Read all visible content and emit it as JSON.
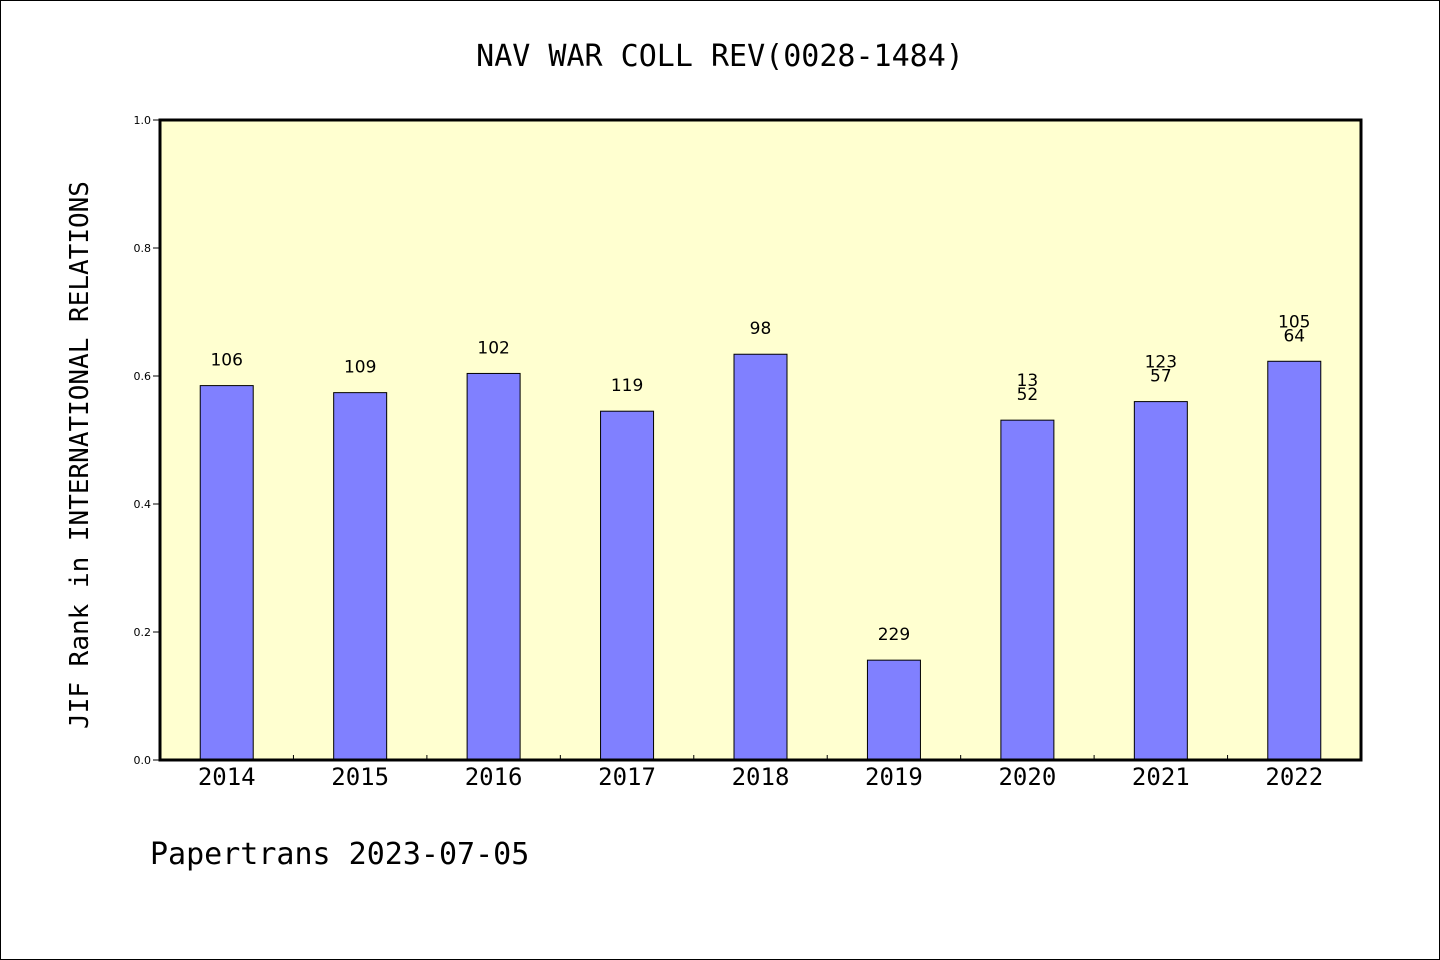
{
  "chart_data": {
    "type": "bar",
    "title": "NAV WAR COLL REV(0028-1484)",
    "ylabel": "JIF Rank in INTERNATIONAL RELATIONS",
    "xlabel": "",
    "ylim": [
      0.0,
      1.0
    ],
    "yticks": [
      "0.0",
      "0.2",
      "0.4",
      "0.6",
      "0.8",
      "1.0"
    ],
    "grid": false,
    "categories": [
      "2014",
      "2015",
      "2016",
      "2017",
      "2018",
      "2019",
      "2020",
      "2021",
      "2022"
    ],
    "values": [
      0.585,
      0.574,
      0.604,
      0.545,
      0.634,
      0.156,
      0.531,
      0.56,
      0.623
    ],
    "bar_labels": [
      [
        "106"
      ],
      [
        "109"
      ],
      [
        "102"
      ],
      [
        "119"
      ],
      [
        "98"
      ],
      [
        "229"
      ],
      [
        "13",
        "52"
      ],
      [
        "123",
        "57"
      ],
      [
        "105",
        "64"
      ]
    ],
    "footer": "Papertrans 2023-07-05",
    "colors": {
      "bar": "#8080ff",
      "plot_background": "#ffffd0",
      "axis": "#000000",
      "text": "#000000"
    }
  }
}
